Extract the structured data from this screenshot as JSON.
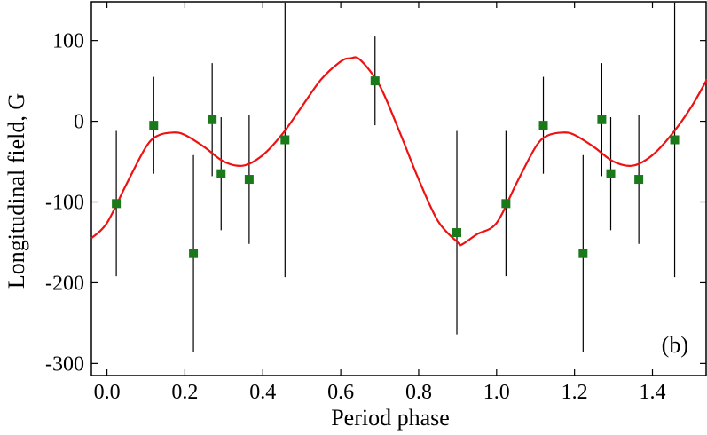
{
  "chart_data": {
    "type": "scatter",
    "xlabel": "Period phase",
    "ylabel": "Longitudinal field, G",
    "annotation": "(b)",
    "xlim": [
      -0.04,
      1.54
    ],
    "ylim": [
      -315,
      148
    ],
    "x_ticks": [
      0.0,
      0.2,
      0.4,
      0.6,
      0.8,
      1.0,
      1.2,
      1.4
    ],
    "x_tick_labels": [
      "0.0",
      "0.2",
      "0.4",
      "0.6",
      "0.8",
      "1.0",
      "1.2",
      "1.4"
    ],
    "y_ticks": [
      -300,
      -200,
      -100,
      0,
      100
    ],
    "y_tick_labels": [
      "-300",
      "-200",
      "-100",
      "0",
      "100"
    ],
    "grid": false,
    "colors": {
      "points": "#1a7a1a",
      "fit": "#ee1111",
      "errorbars": "#000000"
    },
    "series": [
      {
        "type": "scatter",
        "marker": "square",
        "points": [
          {
            "x": 0.024,
            "y": -102,
            "err": 90
          },
          {
            "x": 0.12,
            "y": -5,
            "err": 60
          },
          {
            "x": 0.222,
            "y": -164,
            "err": 122
          },
          {
            "x": 0.27,
            "y": 2,
            "err": 70
          },
          {
            "x": 0.293,
            "y": -65,
            "err": 70
          },
          {
            "x": 0.365,
            "y": -72,
            "err": 80
          },
          {
            "x": 0.457,
            "y": -23,
            "err": 170
          },
          {
            "x": 0.688,
            "y": 50,
            "err": 55
          },
          {
            "x": 0.898,
            "y": -138,
            "err": 126
          },
          {
            "x": 1.024,
            "y": -102,
            "err": 90
          },
          {
            "x": 1.12,
            "y": -5,
            "err": 60
          },
          {
            "x": 1.222,
            "y": -164,
            "err": 122
          },
          {
            "x": 1.27,
            "y": 2,
            "err": 70
          },
          {
            "x": 1.293,
            "y": -65,
            "err": 70
          },
          {
            "x": 1.365,
            "y": -72,
            "err": 80
          },
          {
            "x": 1.457,
            "y": -23,
            "err": 170
          }
        ]
      },
      {
        "type": "line",
        "curve": [
          {
            "x": -0.04,
            "y": -145
          },
          {
            "x": 0.0,
            "y": -126
          },
          {
            "x": 0.05,
            "y": -78
          },
          {
            "x": 0.1,
            "y": -32
          },
          {
            "x": 0.13,
            "y": -18
          },
          {
            "x": 0.17,
            "y": -14
          },
          {
            "x": 0.2,
            "y": -17
          },
          {
            "x": 0.25,
            "y": -32
          },
          {
            "x": 0.3,
            "y": -50
          },
          {
            "x": 0.35,
            "y": -55
          },
          {
            "x": 0.4,
            "y": -42
          },
          {
            "x": 0.45,
            "y": -16
          },
          {
            "x": 0.5,
            "y": 18
          },
          {
            "x": 0.55,
            "y": 52
          },
          {
            "x": 0.6,
            "y": 74
          },
          {
            "x": 0.625,
            "y": 78
          },
          {
            "x": 0.65,
            "y": 76
          },
          {
            "x": 0.7,
            "y": 44
          },
          {
            "x": 0.75,
            "y": -12
          },
          {
            "x": 0.8,
            "y": -72
          },
          {
            "x": 0.85,
            "y": -124
          },
          {
            "x": 0.9,
            "y": -150
          },
          {
            "x": 0.91,
            "y": -153
          },
          {
            "x": 0.95,
            "y": -140
          },
          {
            "x": 1.0,
            "y": -126
          },
          {
            "x": 1.05,
            "y": -78
          },
          {
            "x": 1.1,
            "y": -32
          },
          {
            "x": 1.13,
            "y": -18
          },
          {
            "x": 1.17,
            "y": -14
          },
          {
            "x": 1.2,
            "y": -17
          },
          {
            "x": 1.25,
            "y": -32
          },
          {
            "x": 1.3,
            "y": -50
          },
          {
            "x": 1.35,
            "y": -55
          },
          {
            "x": 1.4,
            "y": -42
          },
          {
            "x": 1.45,
            "y": -16
          },
          {
            "x": 1.5,
            "y": 18
          },
          {
            "x": 1.54,
            "y": 52
          }
        ]
      }
    ]
  }
}
